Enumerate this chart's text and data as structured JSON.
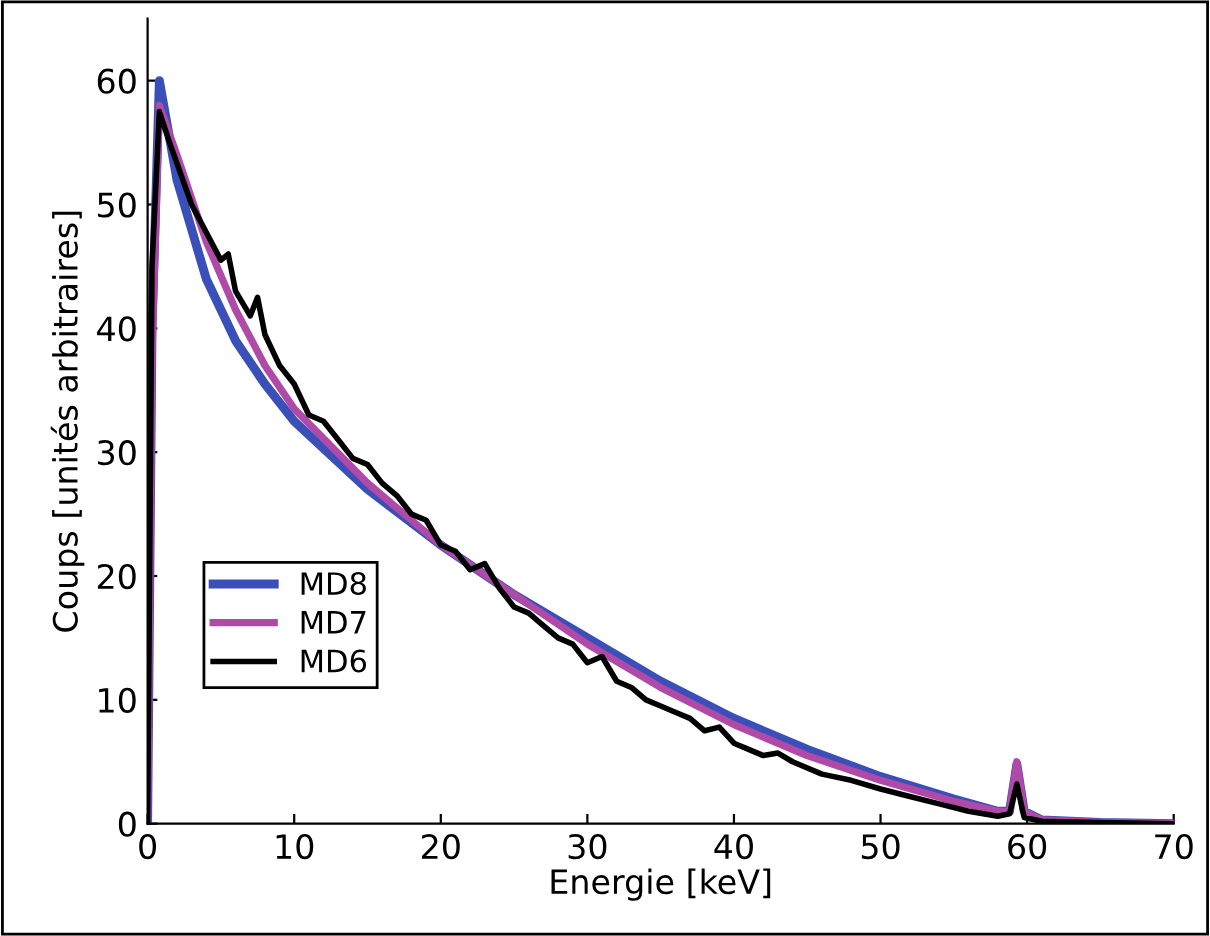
{
  "chart_data": {
    "type": "line",
    "xlabel": "Energie [keV]",
    "ylabel": "Coups [unités arbitraires]",
    "xlim": [
      0,
      70
    ],
    "ylim": [
      0,
      65
    ],
    "xticks": [
      0,
      10,
      20,
      30,
      40,
      50,
      60,
      70
    ],
    "yticks": [
      0,
      10,
      20,
      30,
      40,
      50,
      60
    ],
    "grid": false,
    "legend": "lower left",
    "marker": "none",
    "line_style": "solid",
    "series": [
      {
        "name": "MD8",
        "color": "#3b4fb8",
        "x": [
          0,
          0.3,
          0.8,
          2,
          4,
          6,
          8,
          10,
          15,
          20,
          25,
          30,
          35,
          40,
          45,
          50,
          55,
          58,
          58.8,
          59.3,
          59.8,
          61,
          65,
          70
        ],
        "values": [
          0,
          40,
          60,
          52,
          44,
          39,
          35.5,
          32.5,
          27,
          22.5,
          18.5,
          15,
          11.5,
          8.5,
          6,
          3.8,
          2,
          1,
          1,
          4.8,
          1,
          0.3,
          0.1,
          0
        ]
      },
      {
        "name": "MD7",
        "color": "#b04aa8",
        "x": [
          0,
          0.3,
          0.8,
          2,
          4,
          6,
          8,
          10,
          15,
          20,
          25,
          30,
          35,
          40,
          45,
          50,
          55,
          58,
          58.8,
          59.3,
          59.8,
          61,
          65,
          70
        ],
        "values": [
          0,
          38,
          58,
          54,
          47,
          41.5,
          37,
          33.5,
          27.5,
          22.5,
          18.5,
          14.5,
          11,
          8,
          5.5,
          3.5,
          1.8,
          1,
          1,
          5,
          1,
          0.3,
          0.1,
          0
        ]
      },
      {
        "name": "MD6",
        "color": "#000000",
        "x": [
          0,
          0.3,
          0.8,
          1.5,
          3,
          5,
          5.5,
          6,
          7,
          7.5,
          8,
          9,
          10,
          11,
          12,
          13,
          14,
          15,
          16,
          17,
          18,
          19,
          20,
          21,
          22,
          23,
          24,
          25,
          26,
          27,
          28,
          29,
          30,
          31,
          32,
          33,
          34,
          35,
          36,
          37,
          38,
          39,
          40,
          41,
          42,
          43,
          44,
          46,
          48,
          50,
          52,
          54,
          56,
          58,
          58.8,
          59.3,
          59.8,
          61,
          65,
          70
        ],
        "values": [
          0,
          45,
          57.5,
          55,
          50,
          45.5,
          46,
          43,
          41,
          42.5,
          39.5,
          37,
          35.5,
          33,
          32.5,
          31,
          29.5,
          29,
          27.5,
          26.5,
          25,
          24.5,
          22.5,
          22,
          20.5,
          21,
          19,
          17.5,
          17,
          16,
          15,
          14.5,
          13,
          13.5,
          11.5,
          11,
          10,
          9.5,
          9,
          8.5,
          7.5,
          7.8,
          6.5,
          6,
          5.5,
          5.7,
          5,
          4,
          3.5,
          2.8,
          2.2,
          1.6,
          1.0,
          0.6,
          0.8,
          3.2,
          0.5,
          0.2,
          0.1,
          0
        ]
      }
    ]
  }
}
